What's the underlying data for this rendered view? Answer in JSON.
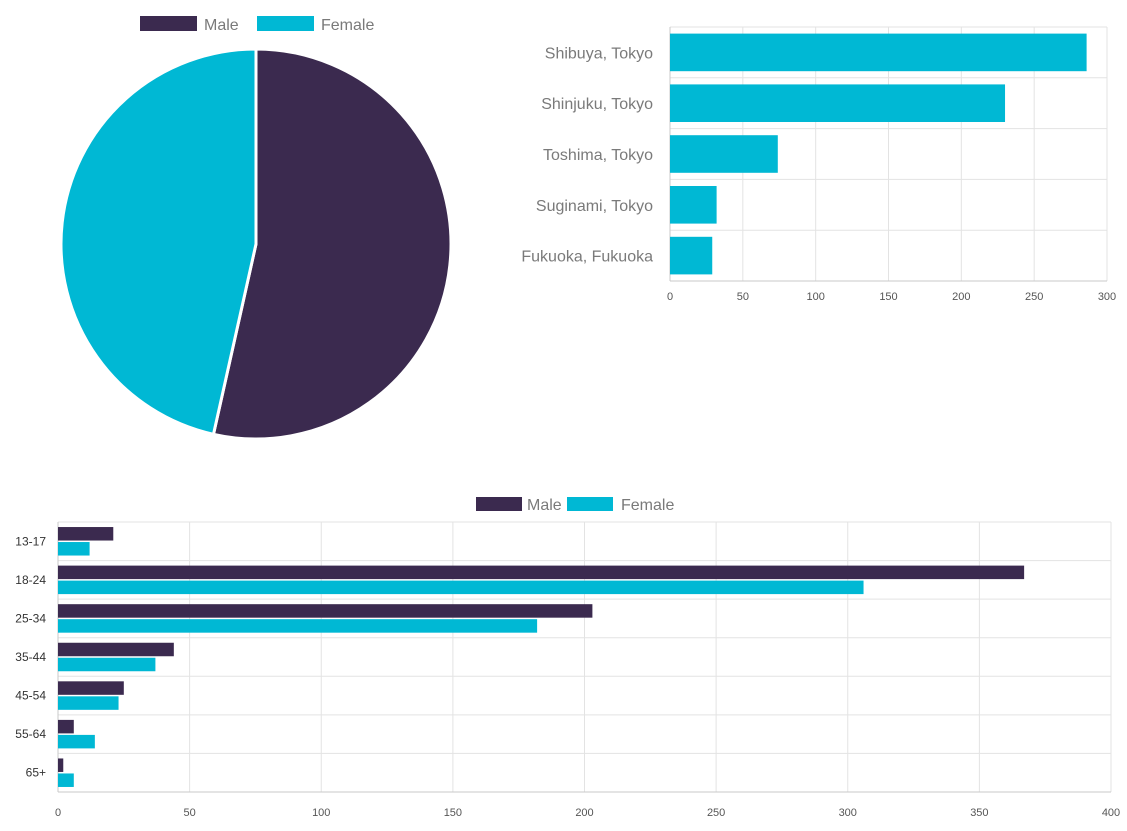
{
  "colors": {
    "male": "#3b2a4f",
    "female": "#00b8d4",
    "grid": "#e3e3e3",
    "axis": "#c9c9c9"
  },
  "chart_data": [
    {
      "type": "pie",
      "legend_position": "top",
      "series": [
        {
          "name": "Male",
          "value": 53.5,
          "color": "#3b2a4f"
        },
        {
          "name": "Female",
          "value": 46.5,
          "color": "#00b8d4"
        }
      ]
    },
    {
      "type": "bar",
      "orientation": "horizontal",
      "categories": [
        "Shibuya, Tokyo",
        "Shinjuku, Tokyo",
        "Toshima, Tokyo",
        "Suginami, Tokyo",
        "Fukuoka, Fukuoka"
      ],
      "values": [
        286,
        230,
        74,
        32,
        29
      ],
      "xlim": [
        0,
        300
      ],
      "xticks": [
        "0",
        "50",
        "100",
        "150",
        "200",
        "250",
        "300"
      ],
      "grid": true
    },
    {
      "type": "bar",
      "orientation": "horizontal",
      "legend_position": "top",
      "categories": [
        "13-17",
        "18-24",
        "25-34",
        "35-44",
        "45-54",
        "55-64",
        "65+"
      ],
      "series": [
        {
          "name": "Male",
          "values": [
            21,
            367,
            203,
            44,
            25,
            6,
            2
          ],
          "color": "#3b2a4f"
        },
        {
          "name": "Female",
          "values": [
            12,
            306,
            182,
            37,
            23,
            14,
            6
          ],
          "color": "#00b8d4"
        }
      ],
      "xlim": [
        0,
        400
      ],
      "xticks": [
        "0",
        "50",
        "100",
        "150",
        "200",
        "250",
        "300",
        "350",
        "400"
      ],
      "grid": true
    }
  ]
}
